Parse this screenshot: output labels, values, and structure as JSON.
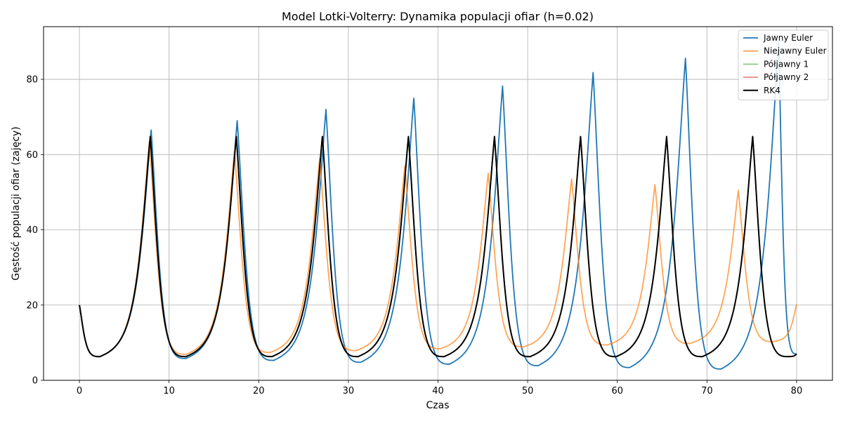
{
  "chart_data": {
    "type": "line",
    "title": "Model Lotki-Volterry: Dynamika populacji ofiar (h=0.02)",
    "xlabel": "Czas",
    "ylabel": "Gęstość populacji ofiar (zajęcy)",
    "xlim": [
      -4,
      84
    ],
    "ylim": [
      0,
      94
    ],
    "xticks": [
      0,
      10,
      20,
      30,
      40,
      50,
      60,
      70,
      80
    ],
    "yticks": [
      0,
      20,
      40,
      60,
      80
    ],
    "grid": true,
    "legend_position": "top-right",
    "series": [
      {
        "name": "Jawny Euler",
        "color": "#1f77b4",
        "width": 1.8,
        "x0": 0,
        "peaks": [
          [
            8.0,
            66.5
          ],
          [
            17.6,
            69.0
          ],
          [
            27.5,
            72.0
          ],
          [
            37.3,
            75.0
          ],
          [
            47.2,
            78.2
          ],
          [
            57.3,
            81.8
          ],
          [
            67.6,
            85.6
          ],
          [
            78.0,
            90.0
          ]
        ],
        "troughs": [
          [
            2.3,
            6.3
          ],
          [
            11.9,
            5.8
          ],
          [
            21.7,
            5.3
          ],
          [
            31.4,
            4.8
          ],
          [
            41.3,
            4.3
          ],
          [
            51.2,
            3.9
          ],
          [
            61.4,
            3.4
          ],
          [
            71.6,
            3.0
          ]
        ],
        "end": [
          80,
          7.0
        ]
      },
      {
        "name": "Niejawny Euler",
        "color": "#ff7f0e",
        "width": 1.8,
        "x0": 0,
        "peaks": [
          [
            7.8,
            63.5
          ],
          [
            17.3,
            61.0
          ],
          [
            26.8,
            59.0
          ],
          [
            36.3,
            57.0
          ],
          [
            45.6,
            55.0
          ],
          [
            54.9,
            53.5
          ],
          [
            64.2,
            52.0
          ],
          [
            73.5,
            50.5
          ]
        ],
        "troughs": [
          [
            2.3,
            6.3
          ],
          [
            11.9,
            6.9
          ],
          [
            21.3,
            7.4
          ],
          [
            30.9,
            7.9
          ],
          [
            40.3,
            8.4
          ],
          [
            49.6,
            8.9
          ],
          [
            58.9,
            9.4
          ],
          [
            68.1,
            9.8
          ],
          [
            77.4,
            10.3
          ]
        ],
        "end": [
          80,
          20.2
        ]
      },
      {
        "name": "Półjawny 1",
        "color": "#2ca02c",
        "width": 1.6,
        "x0": 0,
        "peaks": [
          [
            7.9,
            64.8
          ],
          [
            17.5,
            64.8
          ],
          [
            27.1,
            64.8
          ],
          [
            36.7,
            64.8
          ],
          [
            46.3,
            64.8
          ],
          [
            55.9,
            64.8
          ],
          [
            65.5,
            64.8
          ],
          [
            75.1,
            64.8
          ]
        ],
        "troughs": [
          [
            2.3,
            6.3
          ],
          [
            11.9,
            6.3
          ],
          [
            21.5,
            6.3
          ],
          [
            31.1,
            6.3
          ],
          [
            40.7,
            6.3
          ],
          [
            50.3,
            6.3
          ],
          [
            59.9,
            6.3
          ],
          [
            69.5,
            6.3
          ],
          [
            79.1,
            6.3
          ]
        ],
        "end": [
          80,
          7.0
        ]
      },
      {
        "name": "Półjawny 2",
        "color": "#d62728",
        "width": 1.6,
        "x0": 0,
        "peaks": [
          [
            7.9,
            64.8
          ],
          [
            17.5,
            64.8
          ],
          [
            27.1,
            64.8
          ],
          [
            36.7,
            64.8
          ],
          [
            46.3,
            64.8
          ],
          [
            55.9,
            64.8
          ],
          [
            65.5,
            64.8
          ],
          [
            75.1,
            64.8
          ]
        ],
        "troughs": [
          [
            2.3,
            6.3
          ],
          [
            11.9,
            6.3
          ],
          [
            21.5,
            6.3
          ],
          [
            31.1,
            6.3
          ],
          [
            40.7,
            6.3
          ],
          [
            50.3,
            6.3
          ],
          [
            59.9,
            6.3
          ],
          [
            69.5,
            6.3
          ],
          [
            79.1,
            6.3
          ]
        ],
        "end": [
          80,
          7.0
        ]
      },
      {
        "name": "RK4",
        "color": "#000000",
        "width": 2.0,
        "x0": 0,
        "peaks": [
          [
            7.9,
            64.8
          ],
          [
            17.5,
            64.8
          ],
          [
            27.1,
            64.8
          ],
          [
            36.7,
            64.8
          ],
          [
            46.3,
            64.8
          ],
          [
            55.9,
            64.8
          ],
          [
            65.5,
            64.8
          ],
          [
            75.1,
            64.8
          ]
        ],
        "troughs": [
          [
            2.3,
            6.3
          ],
          [
            11.9,
            6.3
          ],
          [
            21.5,
            6.3
          ],
          [
            31.1,
            6.3
          ],
          [
            40.7,
            6.3
          ],
          [
            50.3,
            6.3
          ],
          [
            59.9,
            6.3
          ],
          [
            69.5,
            6.3
          ],
          [
            79.1,
            6.3
          ]
        ],
        "end": [
          80,
          7.0
        ]
      }
    ],
    "start_value": 20
  }
}
